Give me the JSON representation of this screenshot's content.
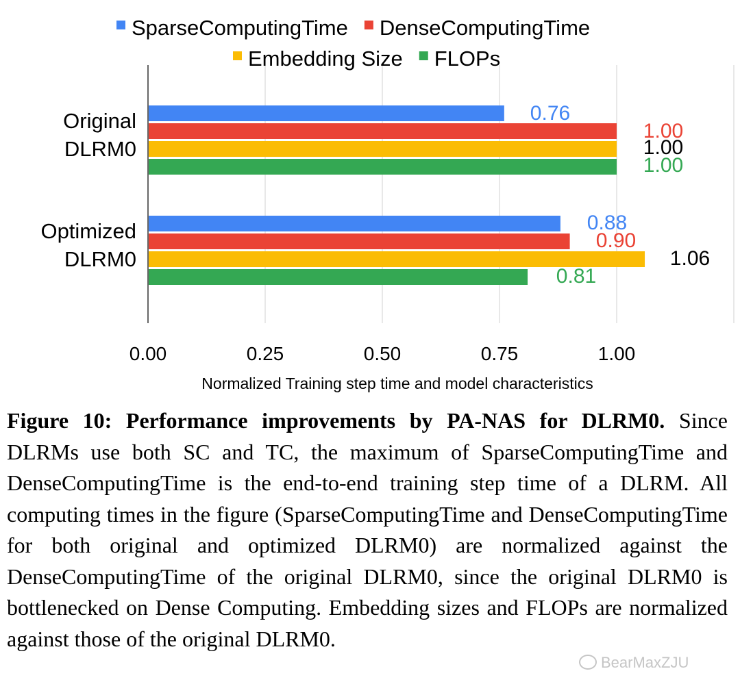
{
  "chart_data": {
    "type": "bar",
    "orientation": "horizontal",
    "categories": [
      [
        "Original",
        "DLRM0"
      ],
      [
        "Optimized",
        "DLRM0"
      ]
    ],
    "series": [
      {
        "name": "SparseComputingTime",
        "color": "#4285f4",
        "values": [
          0.76,
          0.88
        ],
        "labels": [
          "0.76",
          "0.88"
        ],
        "label_color": "#4285f4"
      },
      {
        "name": "DenseComputingTime",
        "color": "#ea4335",
        "values": [
          1.0,
          0.9
        ],
        "labels": [
          "1.00",
          "0.90"
        ],
        "label_color": "#ea4335"
      },
      {
        "name": "Embedding Size",
        "color": "#fbbc04",
        "values": [
          1.0,
          1.06
        ],
        "labels": [
          "1.00",
          "1.06"
        ],
        "label_color": "#000000"
      },
      {
        "name": "FLOPs",
        "color": "#34a853",
        "values": [
          1.0,
          0.81
        ],
        "labels": [
          "1.00",
          "0.81"
        ],
        "label_color": "#34a853"
      }
    ],
    "xlabel": "Normalized Training step time and model characteristics",
    "ylabel": "",
    "xlim": [
      0,
      1.25
    ],
    "xticks": [
      "0.00",
      "0.25",
      "0.50",
      "0.75",
      "1.00"
    ],
    "grid": true,
    "legend_position": "top"
  },
  "caption": {
    "title": "Figure 10: Performance improvements by PA-NAS for DLRM0.",
    "body": " Since DLRMs use both SC and TC, the maximum of SparseComputingTime and DenseComputingTime is the end-to-end training step time of a DLRM. All computing times in the figure (SparseComputingTime and DenseComputingTime for both original and optimized DLRM0) are normalized against the DenseComputingTime of the original DLRM0, since the original DLRM0 is bottlenecked on Dense Computing. Embedding sizes and FLOPs are normalized against those of the original DLRM0."
  },
  "watermark": "BearMaxZJU"
}
